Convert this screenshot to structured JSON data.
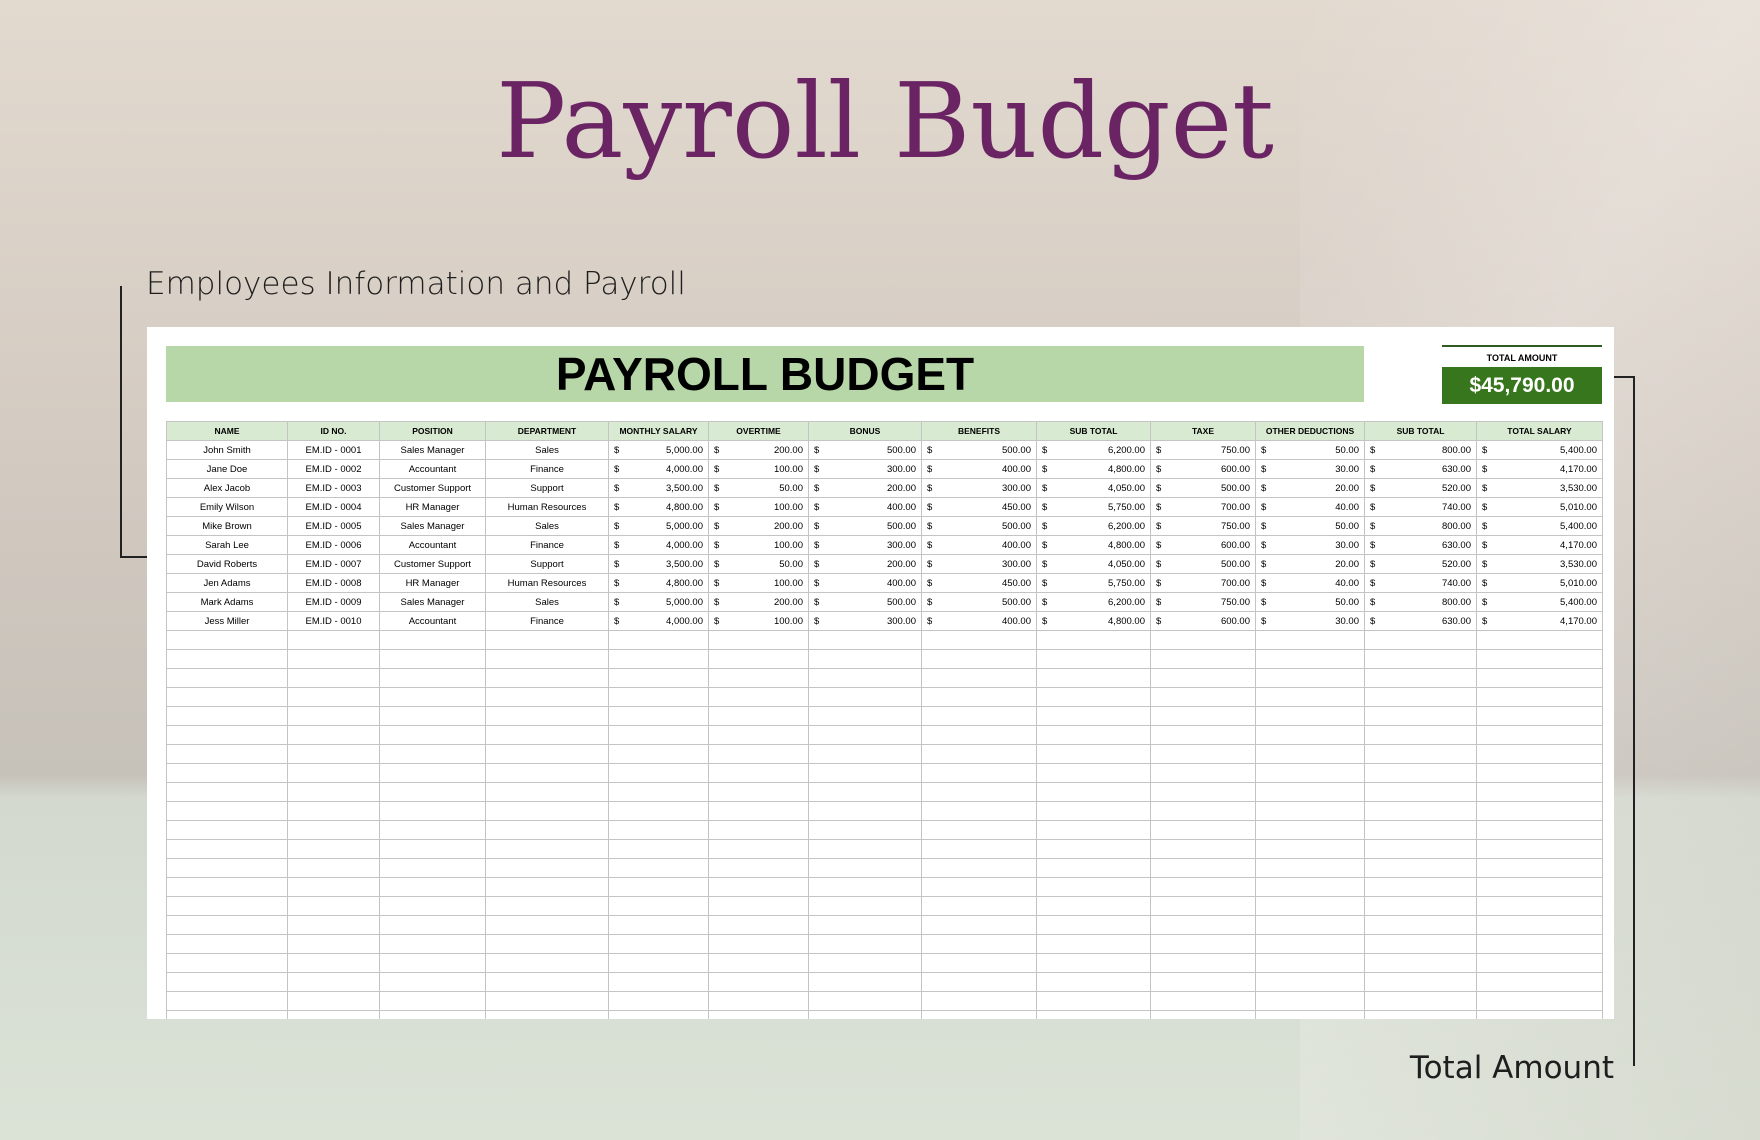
{
  "title": "Payroll Budget",
  "subtitle": "Employees Information and Payroll",
  "total_label_annotation": "Total Amount",
  "sheet": {
    "banner": "PAYROLL BUDGET",
    "total_amount_label": "TOTAL AMOUNT",
    "total_amount_value": "$45,790.00",
    "colors": {
      "banner": "#b7d7a8",
      "total_box": "#38761d",
      "header": "#d9ead3",
      "title": "#6a2463"
    },
    "columns": [
      "NAME",
      "ID NO.",
      "POSITION",
      "DEPARTMENT",
      "MONTHLY SALARY",
      "OVERTIME",
      "BONUS",
      "BENEFITS",
      "SUB TOTAL",
      "TAXE",
      "OTHER DEDUCTIONS",
      "SUB TOTAL",
      "TOTAL SALARY"
    ],
    "currency": "$",
    "rows": [
      [
        "John Smith",
        "EM.ID - 0001",
        "Sales Manager",
        "Sales",
        "5,000.00",
        "200.00",
        "500.00",
        "500.00",
        "6,200.00",
        "750.00",
        "50.00",
        "800.00",
        "5,400.00"
      ],
      [
        "Jane Doe",
        "EM.ID - 0002",
        "Accountant",
        "Finance",
        "4,000.00",
        "100.00",
        "300.00",
        "400.00",
        "4,800.00",
        "600.00",
        "30.00",
        "630.00",
        "4,170.00"
      ],
      [
        "Alex Jacob",
        "EM.ID - 0003",
        "Customer Support",
        "Support",
        "3,500.00",
        "50.00",
        "200.00",
        "300.00",
        "4,050.00",
        "500.00",
        "20.00",
        "520.00",
        "3,530.00"
      ],
      [
        "Emily Wilson",
        "EM.ID - 0004",
        "HR Manager",
        "Human Resources",
        "4,800.00",
        "100.00",
        "400.00",
        "450.00",
        "5,750.00",
        "700.00",
        "40.00",
        "740.00",
        "5,010.00"
      ],
      [
        "Mike Brown",
        "EM.ID - 0005",
        "Sales Manager",
        "Sales",
        "5,000.00",
        "200.00",
        "500.00",
        "500.00",
        "6,200.00",
        "750.00",
        "50.00",
        "800.00",
        "5,400.00"
      ],
      [
        "Sarah Lee",
        "EM.ID - 0006",
        "Accountant",
        "Finance",
        "4,000.00",
        "100.00",
        "300.00",
        "400.00",
        "4,800.00",
        "600.00",
        "30.00",
        "630.00",
        "4,170.00"
      ],
      [
        "David Roberts",
        "EM.ID - 0007",
        "Customer Support",
        "Support",
        "3,500.00",
        "50.00",
        "200.00",
        "300.00",
        "4,050.00",
        "500.00",
        "20.00",
        "520.00",
        "3,530.00"
      ],
      [
        "Jen Adams",
        "EM.ID - 0008",
        "HR Manager",
        "Human Resources",
        "4,800.00",
        "100.00",
        "400.00",
        "450.00",
        "5,750.00",
        "700.00",
        "40.00",
        "740.00",
        "5,010.00"
      ],
      [
        "Mark Adams",
        "EM.ID - 0009",
        "Sales Manager",
        "Sales",
        "5,000.00",
        "200.00",
        "500.00",
        "500.00",
        "6,200.00",
        "750.00",
        "50.00",
        "800.00",
        "5,400.00"
      ],
      [
        "Jess Miller",
        "EM.ID - 0010",
        "Accountant",
        "Finance",
        "4,000.00",
        "100.00",
        "300.00",
        "400.00",
        "4,800.00",
        "600.00",
        "30.00",
        "630.00",
        "4,170.00"
      ]
    ]
  }
}
